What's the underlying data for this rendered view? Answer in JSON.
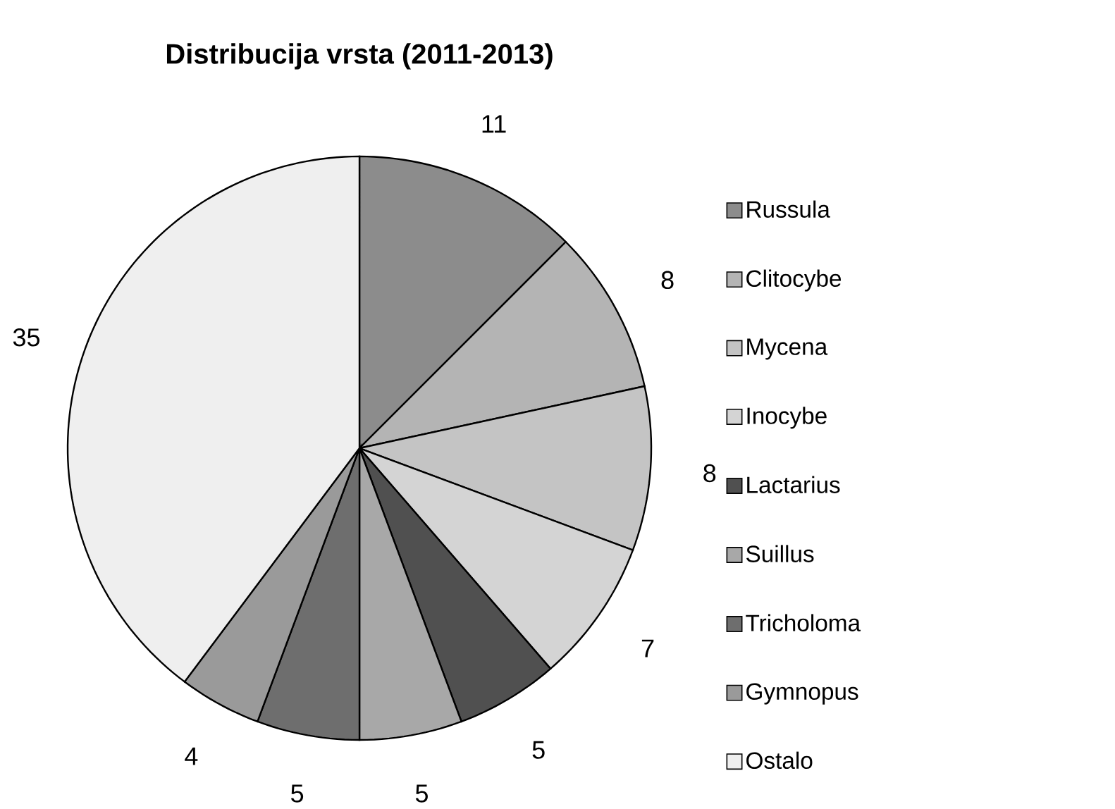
{
  "chart_data": {
    "type": "pie",
    "title": "Distribucija vrsta (2011-2013)",
    "categories": [
      "Russula",
      "Clitocybe",
      "Mycena",
      "Inocybe",
      "Lactarius",
      "Suillus",
      "Tricholoma",
      "Gymnopus",
      "Ostalo"
    ],
    "values": [
      11,
      8,
      8,
      7,
      5,
      5,
      5,
      4,
      35
    ],
    "colors": [
      "#8c8c8c",
      "#b4b4b4",
      "#c4c4c4",
      "#d4d4d4",
      "#505050",
      "#a8a8a8",
      "#6e6e6e",
      "#9a9a9a",
      "#efefef"
    ],
    "data_labels": true,
    "legend": "right"
  }
}
